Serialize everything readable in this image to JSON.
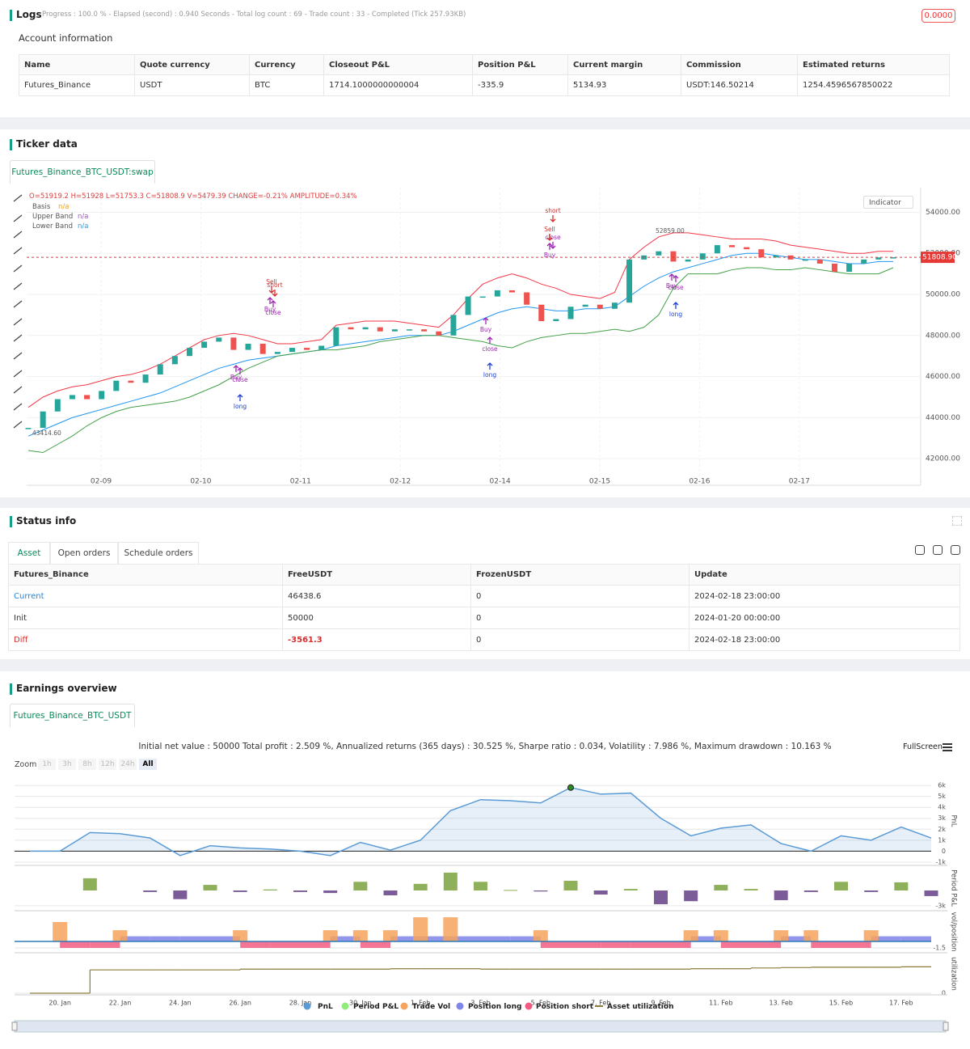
{
  "logs": {
    "title": "Logs",
    "summary": "Progress : 100.0 % - Elapsed (second) : 0.940 Seconds - Total log count : 69 - Trade count : 33 - Completed (Tick 257.93KB)",
    "badge": "0.0000"
  },
  "account": {
    "title": "Account information",
    "columns": [
      "Name",
      "Quote currency",
      "Currency",
      "Closeout P&L",
      "Position P&L",
      "Current margin",
      "Commission",
      "Estimated returns"
    ],
    "rows": [
      [
        "Futures_Binance",
        "USDT",
        "BTC",
        "1714.1000000000004",
        "-335.9",
        "5134.93",
        "USDT:146.50214",
        "1254.4596567850022"
      ]
    ]
  },
  "ticker": {
    "title": "Ticker data",
    "tab": "Futures_Binance_BTC_USDT:swap",
    "ohlc": "O=51919.2 H=51928 L=51753.3 C=51808.9 V=5479.39 CHANGE=-0.21% AMPLITUDE=0.34%",
    "indicator": "Indicator",
    "chart": {
      "type": "candlestick",
      "close": [
        43500,
        44300,
        44900,
        45100,
        44900,
        45300,
        45800,
        45700,
        46100,
        46600,
        47000,
        47400,
        47700,
        47900,
        47300,
        47600,
        47100,
        47200,
        47400,
        47300,
        47500,
        48400,
        48300,
        48400,
        48200,
        48300,
        48300,
        48200,
        48000,
        49000,
        49900,
        49900,
        50200,
        50100,
        49500,
        48700,
        48800,
        49400,
        49500,
        49300,
        49600,
        51700,
        51900,
        52100,
        51600,
        51700,
        52000,
        52400,
        52300,
        52200,
        51800,
        51900,
        51700,
        51700,
        51500,
        51100,
        51500,
        51700,
        51800,
        51808.9
      ],
      "series": [
        {
          "name": "Basis",
          "status": "n/a",
          "color": "#2196f3",
          "values": [
            43100,
            43400,
            43700,
            44000,
            44200,
            44400,
            44600,
            44800,
            45000,
            45200,
            45500,
            45800,
            46100,
            46400,
            46600,
            46800,
            46900,
            47000,
            47100,
            47200,
            47300,
            47500,
            47600,
            47700,
            47800,
            47900,
            48000,
            48000,
            48000,
            48200,
            48500,
            48800,
            49100,
            49300,
            49400,
            49300,
            49200,
            49200,
            49300,
            49300,
            49400,
            49900,
            50400,
            50800,
            51100,
            51300,
            51500,
            51700,
            51900,
            52000,
            52000,
            51900,
            51800,
            51700,
            51700,
            51600,
            51500,
            51500,
            51600,
            51600
          ]
        },
        {
          "name": "Upper Band",
          "status": "n/a",
          "color": "#f23645",
          "values": [
            44500,
            45000,
            45300,
            45500,
            45600,
            45800,
            46000,
            46100,
            46300,
            46600,
            47000,
            47400,
            47800,
            48000,
            48100,
            48000,
            47800,
            47600,
            47600,
            47700,
            47800,
            48500,
            48600,
            48700,
            48700,
            48700,
            48600,
            48500,
            48400,
            49000,
            49800,
            50500,
            50800,
            51000,
            50800,
            50500,
            50300,
            50000,
            49900,
            49800,
            50100,
            51700,
            52300,
            52800,
            53000,
            53000,
            52900,
            52800,
            52700,
            52700,
            52700,
            52600,
            52400,
            52300,
            52200,
            52100,
            52000,
            52000,
            52100,
            52100
          ]
        },
        {
          "name": "Lower Band",
          "status": "n/a",
          "color": "#43a047",
          "values": [
            42400,
            42300,
            42700,
            43100,
            43600,
            44000,
            44300,
            44500,
            44600,
            44700,
            44800,
            45000,
            45300,
            45600,
            46000,
            46400,
            46700,
            47000,
            47100,
            47200,
            47300,
            47300,
            47400,
            47500,
            47700,
            47800,
            47900,
            48000,
            48000,
            47900,
            47800,
            47700,
            47500,
            47400,
            47700,
            47900,
            48000,
            48100,
            48100,
            48200,
            48300,
            48200,
            48400,
            49000,
            50300,
            51000,
            51000,
            51000,
            51200,
            51300,
            51300,
            51200,
            51200,
            51300,
            51200,
            51100,
            51000,
            51000,
            51000,
            51300
          ]
        }
      ],
      "ylim": [
        41100,
        55200
      ],
      "yticks": [
        {
          "value": 42000,
          "label": "42000.00"
        },
        {
          "value": 44000,
          "label": "44000.00"
        },
        {
          "value": 46000,
          "label": "46000.00"
        },
        {
          "value": 48000,
          "label": "48000.00"
        },
        {
          "value": 50000,
          "label": "50000.00"
        },
        {
          "value": 52000,
          "label": "52000.00"
        },
        {
          "value": 54000,
          "label": "54000.00"
        }
      ],
      "x_labels": [
        "02-09",
        "02-10",
        "02-11",
        "02-12",
        "02-14",
        "02-15",
        "02-16",
        "02-17"
      ],
      "last_price": {
        "value": 51808.9,
        "label": "51808.90"
      },
      "high_label": "52859.00",
      "low_label": "43414.60",
      "markers": [
        "short",
        "Sell",
        "close",
        "Buy",
        "Sell",
        "short",
        "Buy",
        "close",
        "Buy",
        "close",
        "long",
        "Buy",
        "close",
        "long",
        "Buy",
        "close",
        "long"
      ]
    }
  },
  "status": {
    "title": "Status info",
    "tabs": [
      "Asset",
      "Open orders",
      "Schedule orders"
    ],
    "columns": [
      "Futures_Binance",
      "FreeUSDT",
      "FrozenUSDT",
      "Update"
    ],
    "rows": [
      [
        "Current",
        "46438.6",
        "0",
        "2024-02-18 23:00:00"
      ],
      [
        "Init",
        "50000",
        "0",
        "2024-01-20 00:00:00"
      ],
      [
        "Diff",
        "-3561.3",
        "0",
        "2024-02-18 23:00:00"
      ]
    ]
  },
  "earnings": {
    "title": "Earnings overview",
    "tab": "Futures_Binance_BTC_USDT",
    "summary": "Initial net value : 50000 Total profit : 2.509 %, Annualized returns (365 days) : 30.525 %, Sharpe ratio : 0.034, Volatility : 7.986 %, Maximum drawdown : 10.163 %",
    "fullscreen": "FullScreen",
    "zoom_label": "Zoom",
    "zoom_buttons": [
      "1h",
      "3h",
      "8h",
      "12h",
      "24h",
      "All"
    ],
    "chart": {
      "type": "line",
      "x_labels": [
        "20. Jan",
        "22. Jan",
        "24. Jan",
        "26. Jan",
        "28. Jan",
        "30. Jan",
        "1. Feb",
        "3. Feb",
        "5. Feb",
        "7. Feb",
        "9. Feb",
        "11. Feb",
        "13. Feb",
        "15. Feb",
        "17. Feb"
      ],
      "axis_labels": [
        "PnL",
        "Period P&L",
        "vol/position",
        "utilization"
      ],
      "series": [
        {
          "name": "PnL",
          "color": "#5b9bd5",
          "values": [
            0,
            0,
            1700,
            1600,
            1200,
            -400,
            500,
            300,
            200,
            0,
            -400,
            800,
            100,
            1000,
            3700,
            4700,
            4600,
            4400,
            5800,
            5200,
            5300,
            3000,
            1400,
            2100,
            2400,
            700,
            0,
            1400,
            1000,
            2200,
            1200
          ]
        },
        {
          "name": "Period P&L",
          "color": "#90ed7d",
          "positive_color": "#8fb05a",
          "negative_color": "#7b5c99",
          "values": [
            null,
            null,
            2400,
            null,
            -300,
            -1700,
            1100,
            -300,
            200,
            -300,
            -500,
            1700,
            -950,
            1300,
            3500,
            1700,
            100,
            -200,
            1900,
            -800,
            300,
            -2700,
            -2100,
            1100,
            300,
            -1900,
            -300,
            1700,
            -300,
            1600,
            -1100
          ]
        },
        {
          "name": "Trade Vol",
          "color": "#f7a35c",
          "values": [
            null,
            4.5,
            null,
            2.6,
            null,
            null,
            null,
            2.6,
            null,
            null,
            2.6,
            2.6,
            2.6,
            5.6,
            5.6,
            null,
            null,
            2.6,
            null,
            null,
            null,
            null,
            2.6,
            2.6,
            null,
            2.6,
            2.6,
            null,
            2.6,
            null,
            null
          ]
        },
        {
          "name": "Position long",
          "color": "#8085e9",
          "values": [
            null,
            null,
            null,
            1.2,
            1.2,
            1.2,
            1.2,
            null,
            null,
            null,
            1.2,
            null,
            1.2,
            1.2,
            1.2,
            1.2,
            1.2,
            null,
            null,
            null,
            null,
            null,
            1.2,
            null,
            null,
            1.2,
            null,
            null,
            1.2,
            1.2,
            null
          ]
        },
        {
          "name": "Position short",
          "color": "#f15c80",
          "values": [
            null,
            -1.5,
            -1.5,
            null,
            null,
            null,
            null,
            -1.5,
            -1.5,
            -1.5,
            null,
            -1.5,
            null,
            null,
            null,
            null,
            null,
            -1.5,
            -1.5,
            -1.5,
            -1.5,
            -1.5,
            null,
            -1.5,
            -1.5,
            null,
            -1.5,
            -1.5,
            null,
            null,
            null
          ]
        },
        {
          "name": "Asset utilization",
          "color": "#8d7a3a",
          "values": [
            0,
            0,
            0.6,
            0.6,
            0.6,
            0.6,
            0.6,
            0.62,
            0.62,
            0.62,
            0.62,
            0.62,
            0.63,
            0.63,
            0.63,
            0.62,
            0.62,
            0.62,
            0.62,
            0.62,
            0.62,
            0.62,
            0.63,
            0.63,
            0.65,
            0.66,
            0.67,
            0.67,
            0.67,
            0.68,
            0.68
          ]
        }
      ],
      "ylim": [
        -1150,
        6670
      ],
      "yticks": [
        {
          "value": -1000,
          "label": "-1k"
        },
        0,
        {
          "value": 1000,
          "label": "1k"
        },
        {
          "value": 2000,
          "label": "2k"
        },
        {
          "value": 3000,
          "label": "3k"
        },
        {
          "value": 4000,
          "label": "4k"
        },
        {
          "value": 5000,
          "label": "5k"
        },
        {
          "value": 6000,
          "label": "6k"
        }
      ],
      "period_ylim": [
        -3650,
        4600
      ],
      "period_yticks": [
        {
          "value": -3000,
          "label": "-3k"
        }
      ],
      "vol_ylim": [
        -2.25,
        6.75
      ],
      "vol_yticks": [
        -1.5
      ],
      "util_ylim": [
        0,
        1
      ],
      "util_yticks": [
        0
      ]
    }
  }
}
